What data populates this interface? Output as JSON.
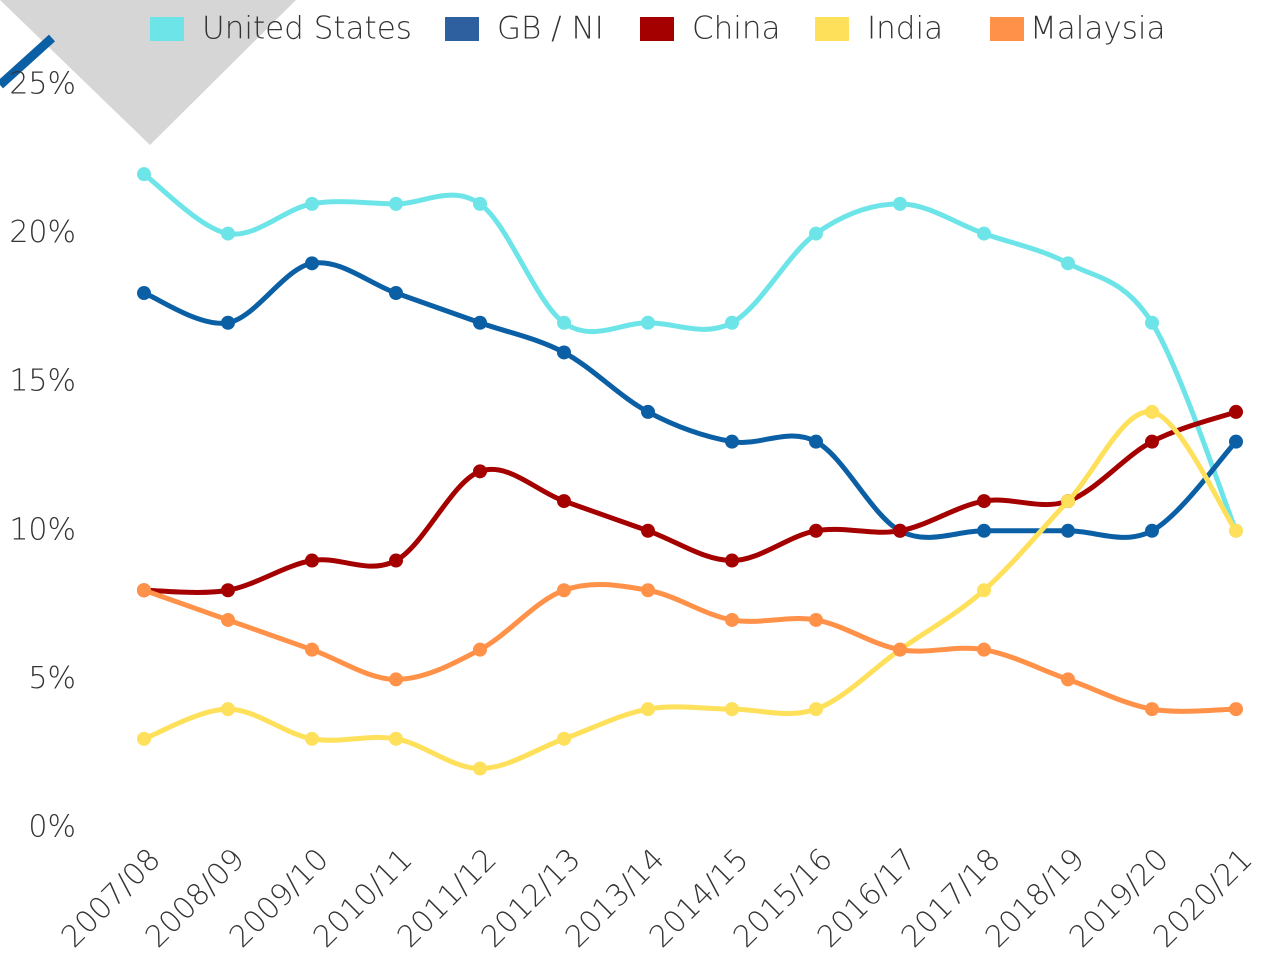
{
  "chart_data": {
    "type": "line",
    "categories": [
      "2007/08",
      "2008/09",
      "2009/10",
      "2010/11",
      "2011/12",
      "2012/13",
      "2013/14",
      "2014/15",
      "2015/16",
      "2016/17",
      "2017/18",
      "2018/19",
      "2019/20",
      "2020/21"
    ],
    "series": [
      {
        "name": "United States",
        "color": "#6de5e8",
        "values": [
          22,
          20,
          21,
          21,
          21,
          17,
          17,
          17,
          20,
          21,
          20,
          19,
          17,
          10
        ]
      },
      {
        "name": "GB / NI",
        "color": "#0b5fa5",
        "values": [
          18,
          17,
          19,
          18,
          17,
          16,
          14,
          13,
          13,
          10,
          10,
          10,
          10,
          13
        ]
      },
      {
        "name": "China",
        "color": "#a50000",
        "values": [
          8,
          8,
          9,
          9,
          12,
          11,
          10,
          9,
          10,
          10,
          11,
          11,
          13,
          14
        ]
      },
      {
        "name": "India",
        "color": "#ffe05a",
        "values": [
          3,
          4,
          3,
          3,
          2,
          3,
          4,
          4,
          4,
          6,
          8,
          11,
          14,
          10
        ]
      },
      {
        "name": "Malaysia",
        "color": "#ff9149",
        "values": [
          8,
          7,
          6,
          5,
          6,
          8,
          8,
          7,
          7,
          6,
          6,
          5,
          4,
          4
        ]
      }
    ],
    "ylim": [
      0,
      25
    ],
    "yticks": [
      {
        "value": 0,
        "label": "0%"
      },
      {
        "value": 5,
        "label": "5%"
      },
      {
        "value": 10,
        "label": "10%"
      },
      {
        "value": 15,
        "label": "15%"
      },
      {
        "value": 20,
        "label": "20%"
      },
      {
        "value": 25,
        "label": "25%"
      }
    ],
    "legend": "top"
  }
}
